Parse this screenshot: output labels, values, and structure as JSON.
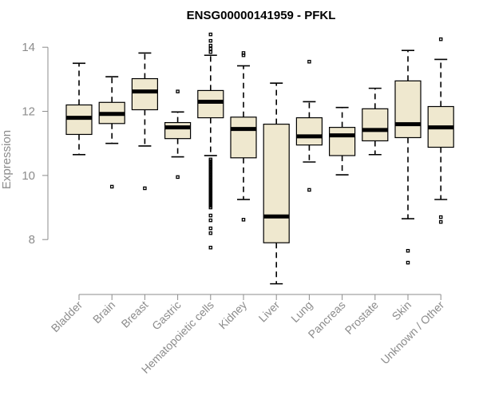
{
  "chart_data": {
    "type": "boxplot",
    "title": "ENSG00000141959 - PFKL",
    "ylabel": "Expression",
    "ylim": [
      6.6,
      14.4
    ],
    "yticks": [
      8,
      10,
      12,
      14
    ],
    "fill_color": "#efe8cf",
    "axis_color": "#8c8c8c",
    "categories": [
      "Bladder",
      "Brain",
      "Breast",
      "Gastric",
      "Hematopoietic cells",
      "Kidney",
      "Liver",
      "Lung",
      "Pancreas",
      "Prostate",
      "Skin",
      "Unknown / Other"
    ],
    "boxes": [
      {
        "min": 10.65,
        "q1": 11.28,
        "median": 11.8,
        "q3": 12.2,
        "max": 13.5,
        "outliers": []
      },
      {
        "min": 11.0,
        "q1": 11.62,
        "median": 11.92,
        "q3": 12.28,
        "max": 13.08,
        "outliers": [
          9.65
        ]
      },
      {
        "min": 10.92,
        "q1": 12.05,
        "median": 12.62,
        "q3": 13.02,
        "max": 13.82,
        "outliers": [
          9.6
        ]
      },
      {
        "min": 10.58,
        "q1": 11.15,
        "median": 11.5,
        "q3": 11.65,
        "max": 11.98,
        "outliers": [
          12.62,
          9.95
        ]
      },
      {
        "min": 10.62,
        "q1": 11.8,
        "median": 12.3,
        "q3": 12.65,
        "max": 13.75,
        "outliers": [
          14.4,
          14.2,
          14.05,
          13.95,
          13.85,
          10.5,
          10.45,
          10.4,
          10.35,
          10.3,
          10.25,
          10.2,
          10.15,
          10.1,
          10.05,
          10.0,
          9.95,
          9.9,
          9.85,
          9.8,
          9.75,
          9.7,
          9.65,
          9.6,
          9.55,
          9.5,
          9.45,
          9.4,
          9.35,
          9.3,
          9.25,
          9.2,
          9.15,
          9.1,
          9.05,
          9.0,
          8.75,
          8.6,
          8.35,
          8.2,
          7.75
        ]
      },
      {
        "min": 9.25,
        "q1": 10.55,
        "median": 11.45,
        "q3": 11.82,
        "max": 13.42,
        "outliers": [
          13.82,
          13.75,
          8.62
        ]
      },
      {
        "min": 6.62,
        "q1": 7.9,
        "median": 8.72,
        "q3": 11.6,
        "max": 12.88,
        "outliers": []
      },
      {
        "min": 10.42,
        "q1": 10.95,
        "median": 11.22,
        "q3": 11.8,
        "max": 12.3,
        "outliers": [
          13.55,
          9.55
        ]
      },
      {
        "min": 10.02,
        "q1": 10.62,
        "median": 11.25,
        "q3": 11.5,
        "max": 12.12,
        "outliers": []
      },
      {
        "min": 10.65,
        "q1": 11.08,
        "median": 11.42,
        "q3": 12.08,
        "max": 12.72,
        "outliers": []
      },
      {
        "min": 8.65,
        "q1": 11.18,
        "median": 11.6,
        "q3": 12.95,
        "max": 13.9,
        "outliers": [
          7.65,
          7.28
        ]
      },
      {
        "min": 9.25,
        "q1": 10.88,
        "median": 11.5,
        "q3": 12.15,
        "max": 13.62,
        "outliers": [
          14.25,
          8.7,
          8.55
        ]
      }
    ]
  }
}
